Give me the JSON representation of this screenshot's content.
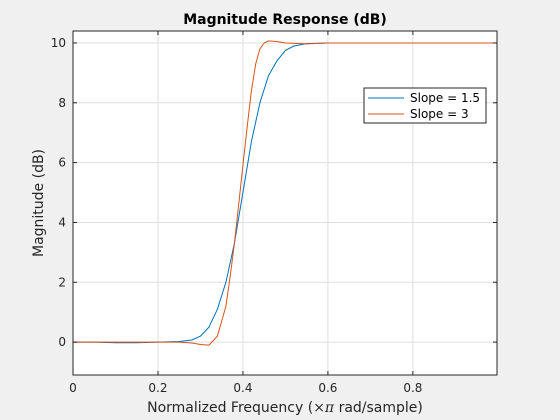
{
  "chart_data": {
    "type": "line",
    "title": "Magnitude Response (dB)",
    "xlabel_prefix": "Normalized Frequency (",
    "xlabel_times": "×",
    "xlabel_pi": "π",
    "xlabel_suffix": " rad/sample)",
    "ylabel": "Magnitude (dB)",
    "xlim": [
      0,
      0.998
    ],
    "ylim": [
      -1.1,
      10.4
    ],
    "xticks": [
      0,
      0.2,
      0.4,
      0.6,
      0.8
    ],
    "xtick_labels": [
      "0",
      "0.2",
      "0.4",
      "0.6",
      "0.8"
    ],
    "yticks": [
      0,
      2,
      4,
      6,
      8,
      10
    ],
    "ytick_labels": [
      "0",
      "2",
      "4",
      "6",
      "8",
      "10"
    ],
    "grid": true,
    "legend_position": "upper right",
    "series": [
      {
        "name": "Slope = 1.5",
        "color": "#0072BD",
        "x": [
          0,
          0.05,
          0.1,
          0.15,
          0.2,
          0.25,
          0.28,
          0.3,
          0.32,
          0.34,
          0.36,
          0.38,
          0.4,
          0.42,
          0.44,
          0.46,
          0.48,
          0.5,
          0.52,
          0.55,
          0.6,
          0.7,
          0.8,
          0.9,
          0.998
        ],
        "y": [
          0,
          0,
          -0.02,
          -0.02,
          0,
          0.02,
          0.07,
          0.2,
          0.5,
          1.1,
          2.0,
          3.3,
          5.0,
          6.7,
          8.0,
          8.9,
          9.4,
          9.75,
          9.9,
          9.98,
          10,
          10,
          10,
          10,
          10
        ]
      },
      {
        "name": "Slope = 3",
        "color": "#D95319",
        "x": [
          0,
          0.1,
          0.2,
          0.25,
          0.28,
          0.3,
          0.32,
          0.34,
          0.36,
          0.37,
          0.38,
          0.39,
          0.4,
          0.41,
          0.42,
          0.43,
          0.44,
          0.45,
          0.46,
          0.48,
          0.5,
          0.55,
          0.6,
          0.7,
          0.8,
          0.9,
          0.998
        ],
        "y": [
          0,
          0,
          0,
          0,
          -0.03,
          -0.08,
          -0.1,
          0.2,
          1.2,
          2.2,
          3.3,
          4.6,
          5.9,
          7.2,
          8.4,
          9.3,
          9.8,
          10.0,
          10.07,
          10.05,
          10.0,
          9.97,
          10,
          10,
          10,
          10,
          10
        ]
      }
    ]
  }
}
